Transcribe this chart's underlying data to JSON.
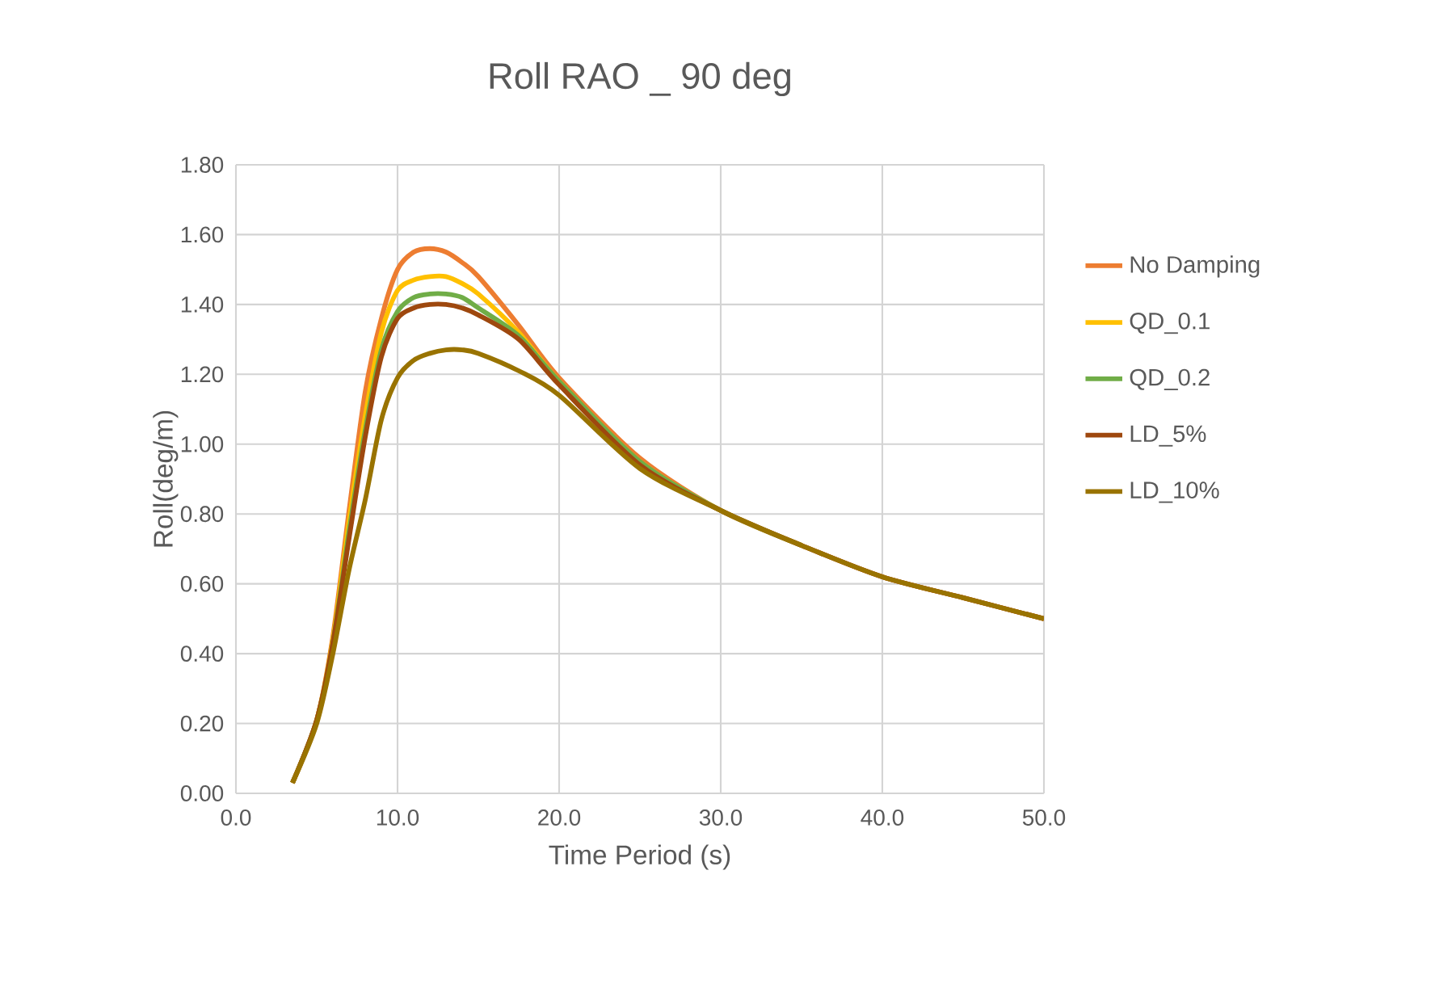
{
  "chart_data": {
    "type": "line",
    "title": "Roll RAO _ 90 deg",
    "xlabel": "Time Period (s)",
    "ylabel": "Roll(deg/m)",
    "x": [
      3.5,
      5,
      6,
      7,
      8,
      9,
      10,
      11,
      12,
      13,
      14,
      15,
      17.5,
      20,
      25,
      30,
      35,
      40,
      45,
      50
    ],
    "series": [
      {
        "name": "No Damping",
        "color": "#ed7d31",
        "values": [
          0.03,
          0.21,
          0.45,
          0.81,
          1.15,
          1.36,
          1.5,
          1.55,
          1.56,
          1.55,
          1.52,
          1.48,
          1.34,
          1.19,
          0.96,
          0.81,
          0.71,
          0.62,
          0.56,
          0.5
        ]
      },
      {
        "name": "QD_0.1",
        "color": "#ffc000",
        "values": [
          0.03,
          0.21,
          0.44,
          0.78,
          1.08,
          1.32,
          1.44,
          1.47,
          1.48,
          1.48,
          1.46,
          1.43,
          1.32,
          1.18,
          0.95,
          0.81,
          0.71,
          null,
          null,
          null
        ]
      },
      {
        "name": "QD_0.2",
        "color": "#70ad47",
        "values": [
          0.03,
          0.21,
          0.43,
          0.75,
          1.04,
          1.27,
          1.38,
          1.42,
          1.43,
          1.43,
          1.42,
          1.39,
          1.31,
          1.18,
          0.95,
          0.81,
          0.71,
          null,
          null,
          null
        ]
      },
      {
        "name": "LD_5%",
        "color": "#9e480e",
        "values": [
          0.03,
          0.21,
          0.43,
          0.73,
          1.02,
          1.25,
          1.36,
          1.39,
          1.4,
          1.4,
          1.39,
          1.37,
          1.3,
          1.17,
          0.94,
          0.81,
          0.71,
          0.62,
          0.56,
          0.5
        ]
      },
      {
        "name": "LD_10%",
        "color": "#997300",
        "values": [
          0.03,
          0.2,
          0.4,
          0.64,
          0.84,
          1.07,
          1.19,
          1.24,
          1.26,
          1.27,
          1.27,
          1.26,
          1.21,
          1.14,
          0.93,
          0.81,
          0.71,
          0.62,
          0.56,
          0.5
        ]
      }
    ],
    "xlim": [
      0,
      50
    ],
    "ylim": [
      0,
      1.8
    ],
    "xticks": [
      {
        "value": 0,
        "label": "0.0"
      },
      {
        "value": 10,
        "label": "10.0"
      },
      {
        "value": 20,
        "label": "20.0"
      },
      {
        "value": 30,
        "label": "30.0"
      },
      {
        "value": 40,
        "label": "40.0"
      },
      {
        "value": 50,
        "label": "50.0"
      }
    ],
    "yticks": [
      {
        "value": 0,
        "label": "0.00"
      },
      {
        "value": 0.2,
        "label": "0.20"
      },
      {
        "value": 0.4,
        "label": "0.40"
      },
      {
        "value": 0.6,
        "label": "0.60"
      },
      {
        "value": 0.8,
        "label": "0.80"
      },
      {
        "value": 1.0,
        "label": "1.00"
      },
      {
        "value": 1.2,
        "label": "1.20"
      },
      {
        "value": 1.4,
        "label": "1.40"
      },
      {
        "value": 1.6,
        "label": "1.60"
      },
      {
        "value": 1.8,
        "label": "1.80"
      }
    ],
    "grid": true,
    "legend": "right"
  }
}
